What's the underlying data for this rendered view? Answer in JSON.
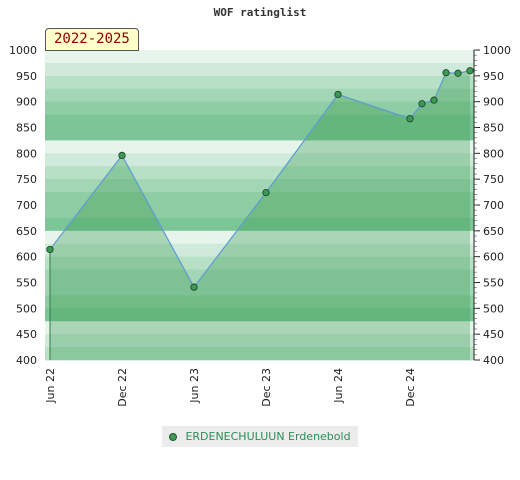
{
  "chart_data": {
    "type": "area",
    "title": "WOF ratinglist",
    "period": "2022-2025",
    "ylim": [
      400,
      1000
    ],
    "y_ticks": [
      400,
      450,
      500,
      550,
      600,
      650,
      700,
      750,
      800,
      850,
      900,
      950,
      1000
    ],
    "x_ticks": [
      "Jun 22",
      "Dec 22",
      "Jun 23",
      "Dec 23",
      "Jun 24",
      "Dec 24"
    ],
    "x_tick_months": [
      0,
      6,
      12,
      18,
      24,
      30
    ],
    "legend_position": "bottom",
    "series": [
      {
        "name": "ERDENECHULUUN Erdenebold",
        "color": "#3a9a54",
        "line_color": "#5b9bd5",
        "points": [
          {
            "date": "2022-06",
            "value": 614
          },
          {
            "date": "2022-12",
            "value": 796
          },
          {
            "date": "2023-06",
            "value": 541
          },
          {
            "date": "2023-12",
            "value": 724
          },
          {
            "date": "2024-06",
            "value": 914
          },
          {
            "date": "2024-12",
            "value": 867
          },
          {
            "date": "2025-01",
            "value": 896
          },
          {
            "date": "2025-02",
            "value": 903
          },
          {
            "date": "2025-03",
            "value": 956
          },
          {
            "date": "2025-04",
            "value": 955
          },
          {
            "date": "2025-05",
            "value": 960
          }
        ]
      }
    ]
  }
}
